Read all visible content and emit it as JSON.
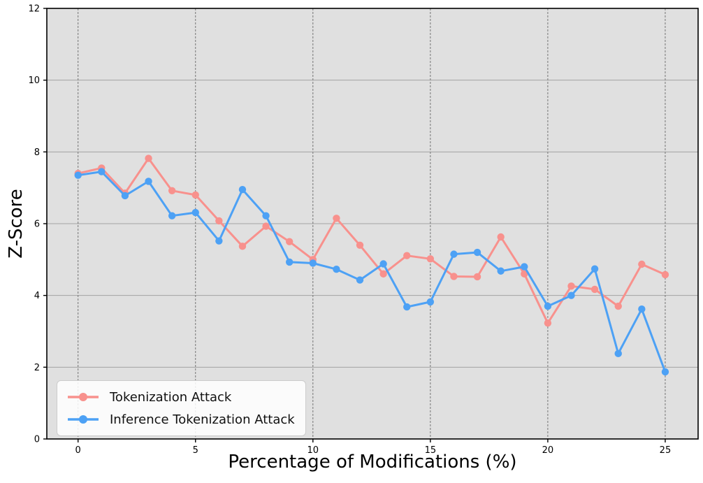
{
  "chart_data": {
    "type": "line",
    "title": "",
    "xlabel": "Percentage of Modifications (%)",
    "ylabel": "Z-Score",
    "x": [
      0,
      1,
      2,
      3,
      4,
      5,
      6,
      7,
      8,
      9,
      10,
      11,
      12,
      13,
      14,
      15,
      16,
      17,
      18,
      19,
      20,
      21,
      22,
      23,
      24,
      25
    ],
    "series": [
      {
        "name": "Tokenization Attack",
        "color": "#f8918d",
        "values": [
          7.4,
          7.55,
          6.85,
          7.82,
          6.92,
          6.8,
          6.08,
          5.37,
          5.93,
          5.5,
          5.0,
          6.15,
          5.4,
          4.6,
          5.11,
          5.02,
          4.53,
          4.52,
          5.63,
          4.6,
          3.23,
          4.26,
          4.17,
          3.7,
          4.87,
          4.58
        ]
      },
      {
        "name": "Inference Tokenization Attack",
        "color": "#4da1f5",
        "values": [
          7.35,
          7.45,
          6.78,
          7.18,
          6.22,
          6.31,
          5.52,
          6.95,
          6.22,
          4.93,
          4.9,
          4.73,
          4.43,
          4.88,
          3.68,
          3.82,
          5.15,
          5.2,
          4.68,
          4.8,
          3.7,
          4.0,
          4.74,
          2.38,
          3.62,
          1.87
        ]
      }
    ],
    "xlim": [
      -1.33,
      26.4
    ],
    "ylim": [
      0,
      12
    ],
    "xticks": [
      0,
      5,
      10,
      15,
      20,
      25
    ],
    "yticks": [
      0,
      2,
      4,
      6,
      8,
      10,
      12
    ],
    "grid": true,
    "legend_position": "lower left",
    "plot_bg": "#e0e0e0",
    "grid_color_horizontal": "#a3a3a3",
    "grid_color_vertical": "#757575",
    "spine_color": "#000000"
  }
}
